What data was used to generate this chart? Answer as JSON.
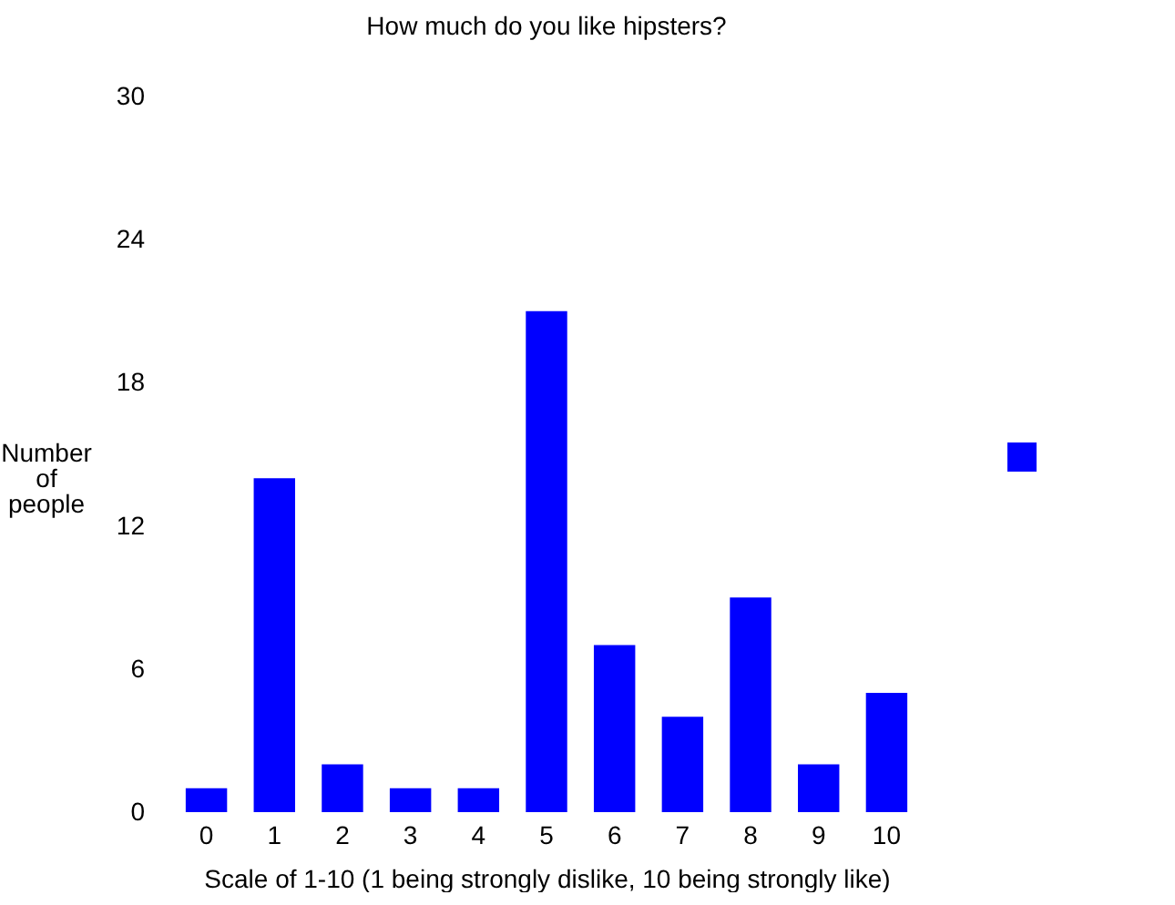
{
  "chart_data": {
    "type": "bar",
    "title": "How much do you like hipsters?",
    "xlabel": "Scale of 1-10 (1 being strongly dislike, 10 being strongly like)",
    "ylabel": "Number of people",
    "categories": [
      "0",
      "1",
      "2",
      "3",
      "4",
      "5",
      "6",
      "7",
      "8",
      "9",
      "10"
    ],
    "series": [
      {
        "color": "#0000ff",
        "values": [
          1,
          14,
          2,
          1,
          1,
          21,
          7,
          4,
          9,
          2,
          5
        ]
      }
    ],
    "ylim": [
      0,
      30
    ],
    "yticks": [
      0,
      6,
      12,
      18,
      24,
      30
    ],
    "grid": false
  }
}
